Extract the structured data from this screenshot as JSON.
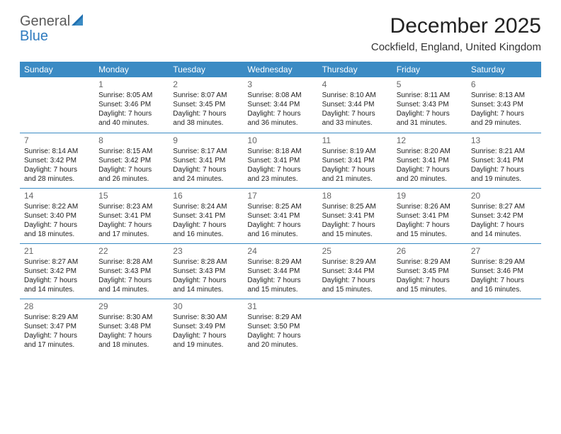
{
  "logo": {
    "text1": "General",
    "text2": "Blue"
  },
  "title": "December 2025",
  "location": "Cockfield, England, United Kingdom",
  "colors": {
    "header_bg": "#3b8bc4",
    "header_fg": "#ffffff",
    "rule": "#3b8bc4",
    "logo_gray": "#5a5a5a",
    "logo_blue": "#2f7bbf"
  },
  "weekdays": [
    "Sunday",
    "Monday",
    "Tuesday",
    "Wednesday",
    "Thursday",
    "Friday",
    "Saturday"
  ],
  "weeks": [
    [
      null,
      {
        "n": "1",
        "t": "Sunrise: 8:05 AM\nSunset: 3:46 PM\nDaylight: 7 hours and 40 minutes."
      },
      {
        "n": "2",
        "t": "Sunrise: 8:07 AM\nSunset: 3:45 PM\nDaylight: 7 hours and 38 minutes."
      },
      {
        "n": "3",
        "t": "Sunrise: 8:08 AM\nSunset: 3:44 PM\nDaylight: 7 hours and 36 minutes."
      },
      {
        "n": "4",
        "t": "Sunrise: 8:10 AM\nSunset: 3:44 PM\nDaylight: 7 hours and 33 minutes."
      },
      {
        "n": "5",
        "t": "Sunrise: 8:11 AM\nSunset: 3:43 PM\nDaylight: 7 hours and 31 minutes."
      },
      {
        "n": "6",
        "t": "Sunrise: 8:13 AM\nSunset: 3:43 PM\nDaylight: 7 hours and 29 minutes."
      }
    ],
    [
      {
        "n": "7",
        "t": "Sunrise: 8:14 AM\nSunset: 3:42 PM\nDaylight: 7 hours and 28 minutes."
      },
      {
        "n": "8",
        "t": "Sunrise: 8:15 AM\nSunset: 3:42 PM\nDaylight: 7 hours and 26 minutes."
      },
      {
        "n": "9",
        "t": "Sunrise: 8:17 AM\nSunset: 3:41 PM\nDaylight: 7 hours and 24 minutes."
      },
      {
        "n": "10",
        "t": "Sunrise: 8:18 AM\nSunset: 3:41 PM\nDaylight: 7 hours and 23 minutes."
      },
      {
        "n": "11",
        "t": "Sunrise: 8:19 AM\nSunset: 3:41 PM\nDaylight: 7 hours and 21 minutes."
      },
      {
        "n": "12",
        "t": "Sunrise: 8:20 AM\nSunset: 3:41 PM\nDaylight: 7 hours and 20 minutes."
      },
      {
        "n": "13",
        "t": "Sunrise: 8:21 AM\nSunset: 3:41 PM\nDaylight: 7 hours and 19 minutes."
      }
    ],
    [
      {
        "n": "14",
        "t": "Sunrise: 8:22 AM\nSunset: 3:40 PM\nDaylight: 7 hours and 18 minutes."
      },
      {
        "n": "15",
        "t": "Sunrise: 8:23 AM\nSunset: 3:41 PM\nDaylight: 7 hours and 17 minutes."
      },
      {
        "n": "16",
        "t": "Sunrise: 8:24 AM\nSunset: 3:41 PM\nDaylight: 7 hours and 16 minutes."
      },
      {
        "n": "17",
        "t": "Sunrise: 8:25 AM\nSunset: 3:41 PM\nDaylight: 7 hours and 16 minutes."
      },
      {
        "n": "18",
        "t": "Sunrise: 8:25 AM\nSunset: 3:41 PM\nDaylight: 7 hours and 15 minutes."
      },
      {
        "n": "19",
        "t": "Sunrise: 8:26 AM\nSunset: 3:41 PM\nDaylight: 7 hours and 15 minutes."
      },
      {
        "n": "20",
        "t": "Sunrise: 8:27 AM\nSunset: 3:42 PM\nDaylight: 7 hours and 14 minutes."
      }
    ],
    [
      {
        "n": "21",
        "t": "Sunrise: 8:27 AM\nSunset: 3:42 PM\nDaylight: 7 hours and 14 minutes."
      },
      {
        "n": "22",
        "t": "Sunrise: 8:28 AM\nSunset: 3:43 PM\nDaylight: 7 hours and 14 minutes."
      },
      {
        "n": "23",
        "t": "Sunrise: 8:28 AM\nSunset: 3:43 PM\nDaylight: 7 hours and 14 minutes."
      },
      {
        "n": "24",
        "t": "Sunrise: 8:29 AM\nSunset: 3:44 PM\nDaylight: 7 hours and 15 minutes."
      },
      {
        "n": "25",
        "t": "Sunrise: 8:29 AM\nSunset: 3:44 PM\nDaylight: 7 hours and 15 minutes."
      },
      {
        "n": "26",
        "t": "Sunrise: 8:29 AM\nSunset: 3:45 PM\nDaylight: 7 hours and 15 minutes."
      },
      {
        "n": "27",
        "t": "Sunrise: 8:29 AM\nSunset: 3:46 PM\nDaylight: 7 hours and 16 minutes."
      }
    ],
    [
      {
        "n": "28",
        "t": "Sunrise: 8:29 AM\nSunset: 3:47 PM\nDaylight: 7 hours and 17 minutes."
      },
      {
        "n": "29",
        "t": "Sunrise: 8:30 AM\nSunset: 3:48 PM\nDaylight: 7 hours and 18 minutes."
      },
      {
        "n": "30",
        "t": "Sunrise: 8:30 AM\nSunset: 3:49 PM\nDaylight: 7 hours and 19 minutes."
      },
      {
        "n": "31",
        "t": "Sunrise: 8:29 AM\nSunset: 3:50 PM\nDaylight: 7 hours and 20 minutes."
      },
      null,
      null,
      null
    ]
  ]
}
